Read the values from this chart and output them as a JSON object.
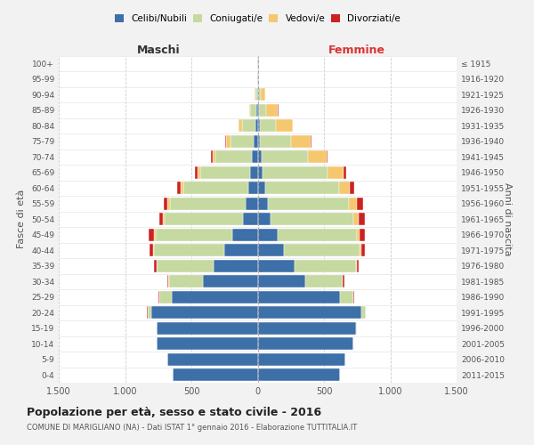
{
  "age_groups": [
    "0-4",
    "5-9",
    "10-14",
    "15-19",
    "20-24",
    "25-29",
    "30-34",
    "35-39",
    "40-44",
    "45-49",
    "50-54",
    "55-59",
    "60-64",
    "65-69",
    "70-74",
    "75-79",
    "80-84",
    "85-89",
    "90-94",
    "95-99",
    "100+"
  ],
  "birth_years": [
    "2011-2015",
    "2006-2010",
    "2001-2005",
    "1996-2000",
    "1991-1995",
    "1986-1990",
    "1981-1985",
    "1976-1980",
    "1971-1975",
    "1966-1970",
    "1961-1965",
    "1956-1960",
    "1951-1955",
    "1946-1950",
    "1941-1945",
    "1936-1940",
    "1931-1935",
    "1926-1930",
    "1921-1925",
    "1916-1920",
    "≤ 1915"
  ],
  "males": {
    "celibe": [
      640,
      680,
      760,
      760,
      800,
      650,
      410,
      330,
      250,
      190,
      110,
      90,
      70,
      55,
      45,
      30,
      20,
      10,
      5,
      2,
      2
    ],
    "coniugato": [
      0,
      0,
      0,
      5,
      30,
      90,
      260,
      430,
      530,
      580,
      590,
      570,
      490,
      380,
      275,
      175,
      95,
      45,
      15,
      3,
      2
    ],
    "vedovo": [
      0,
      0,
      0,
      0,
      1,
      2,
      2,
      5,
      8,
      10,
      15,
      20,
      20,
      20,
      20,
      35,
      30,
      10,
      5,
      0,
      0
    ],
    "divorziato": [
      0,
      0,
      0,
      0,
      2,
      5,
      10,
      20,
      30,
      40,
      25,
      30,
      30,
      20,
      10,
      5,
      2,
      0,
      0,
      0,
      0
    ]
  },
  "females": {
    "nubile": [
      620,
      660,
      720,
      740,
      780,
      620,
      360,
      280,
      200,
      150,
      100,
      75,
      55,
      40,
      30,
      20,
      15,
      8,
      5,
      2,
      2
    ],
    "coniugata": [
      0,
      0,
      0,
      5,
      35,
      100,
      280,
      460,
      570,
      600,
      620,
      610,
      560,
      490,
      350,
      230,
      120,
      55,
      20,
      5,
      3
    ],
    "vedova": [
      0,
      0,
      0,
      0,
      1,
      2,
      3,
      5,
      10,
      20,
      40,
      60,
      80,
      120,
      140,
      150,
      130,
      90,
      35,
      5,
      2
    ],
    "divorziata": [
      0,
      0,
      0,
      0,
      2,
      5,
      10,
      20,
      30,
      40,
      50,
      50,
      30,
      15,
      10,
      5,
      2,
      2,
      0,
      0,
      0
    ]
  },
  "colors": {
    "celibe": "#3d6fa8",
    "coniugato": "#c5d9a0",
    "vedovo": "#f5c76e",
    "divorziato": "#cc2222"
  },
  "xlim": 1500,
  "xticks": [
    -1500,
    -1000,
    -500,
    0,
    500,
    1000,
    1500
  ],
  "xtick_labels": [
    "1.500",
    "1.000",
    "500",
    "0",
    "500",
    "1.000",
    "1.500"
  ],
  "title": "Popolazione per età, sesso e stato civile - 2016",
  "subtitle": "COMUNE DI MARIGLIANO (NA) - Dati ISTAT 1° gennaio 2016 - Elaborazione TUTTITALIA.IT",
  "ylabel_left": "Fasce di età",
  "ylabel_right": "Anni di nascita",
  "maschi_label": "Maschi",
  "femmine_label": "Femmine",
  "legend_labels": [
    "Celibi/Nubili",
    "Coniugati/e",
    "Vedovi/e",
    "Divorziati/e"
  ],
  "bg_color": "#f2f2f2",
  "plot_bg_color": "#ffffff"
}
